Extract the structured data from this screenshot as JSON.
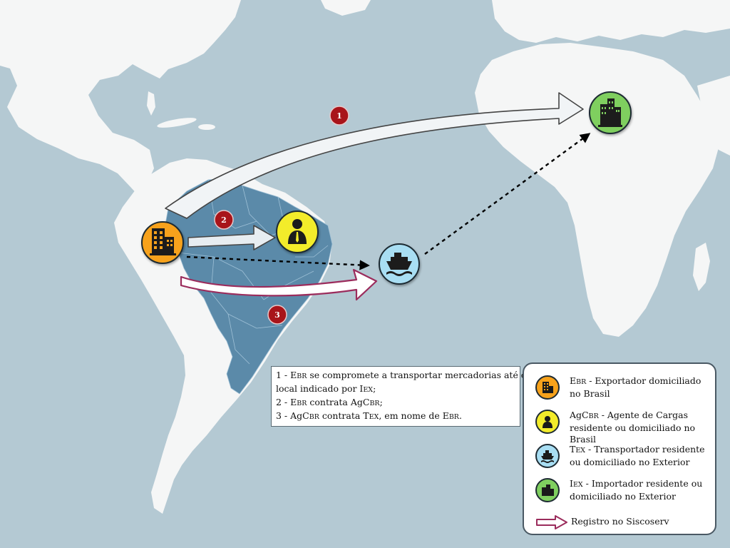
{
  "steps": [
    {
      "number": "1"
    },
    {
      "number": "2"
    },
    {
      "number": "3"
    }
  ],
  "caption": {
    "line1": {
      "pre": "1 - E",
      "sc1": "BR",
      "post": " se compromete a transportar mercadorias até o"
    },
    "line2": {
      "pre": "local indicado por I",
      "sc1": "EX",
      "post": ";"
    },
    "line3": {
      "pre": "2 - E",
      "sc1": "BR",
      "mid": " contrata AgC",
      "sc2": "BR",
      "post": ";"
    },
    "line4": {
      "pre": "3 - AgC",
      "sc1": "BR",
      "mid": " contrata T",
      "sc2": "EX",
      "mid2": ", em nome de E",
      "sc3": "BR",
      "post": "."
    }
  },
  "legend": {
    "items": [
      {
        "main": "E",
        "sub": "BR",
        "desc": " - Exportador domiciliado no Brasil",
        "color": "#f7a21b",
        "icon": "building-icon"
      },
      {
        "main": "AgC",
        "sub": "BR",
        "desc": " - Agente de Cargas residente ou domiciliado no Brasil",
        "color": "#f3ec2a",
        "icon": "person-icon"
      },
      {
        "main": "T",
        "sub": "EX",
        "desc": " - Transportador residente ou domiciliado no Exterior",
        "color": "#a8def3",
        "icon": "ship-icon"
      },
      {
        "main": "I",
        "sub": "EX",
        "desc": " - Importador residente ou domiciliado no Exterior",
        "color": "#7fcf5f",
        "icon": "building-icon"
      }
    ],
    "arrow_label": "Registro no Siscoserv"
  },
  "colors": {
    "ocean": "#b4c9d3",
    "land": "#f5f6f6",
    "brazil": "#5b8aa9",
    "exporter": "#f7a21b",
    "agent": "#f3ec2a",
    "carrier": "#a8def3",
    "importer": "#7fcf5f",
    "step_badge": "#a8141a",
    "registro_arrow": "#9b2c5c"
  }
}
